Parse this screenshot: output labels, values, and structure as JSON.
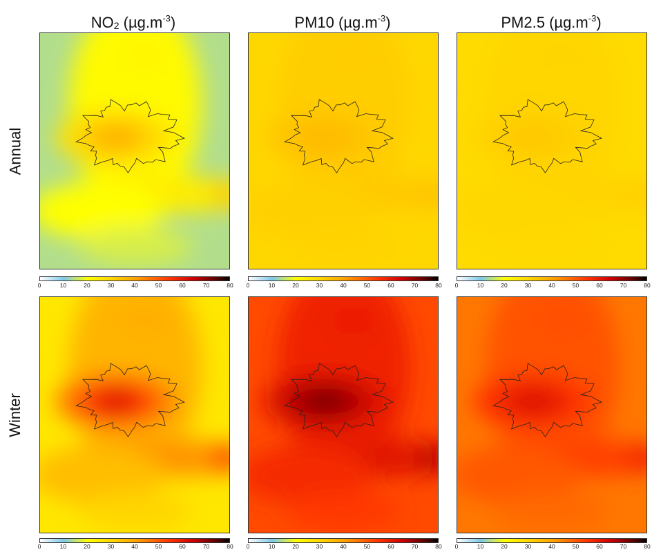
{
  "columns": [
    {
      "pollutant": "NO",
      "sub": "2",
      "unit_pre": " (µg.m",
      "unit_sup": "-3",
      "unit_post": ")"
    },
    {
      "pollutant": "PM10",
      "sub": "",
      "unit_pre": " (µg.m",
      "unit_sup": "-3",
      "unit_post": ")"
    },
    {
      "pollutant": "PM2.5",
      "sub": "",
      "unit_pre": " (µg.m",
      "unit_sup": "-3",
      "unit_post": ")"
    }
  ],
  "rows": [
    {
      "label": "Annual"
    },
    {
      "label": "Winter"
    }
  ],
  "colorbar": {
    "ticks": [
      "0",
      "10",
      "20",
      "30",
      "40",
      "50",
      "60",
      "70",
      "80"
    ],
    "range": [
      0,
      80
    ],
    "stops": [
      {
        "v": 0,
        "color": "#ffffff"
      },
      {
        "v": 10,
        "color": "#7ec8ea"
      },
      {
        "v": 20,
        "color": "#ffff00"
      },
      {
        "v": 30,
        "color": "#ffd700"
      },
      {
        "v": 40,
        "color": "#ffa500"
      },
      {
        "v": 55,
        "color": "#ff3300"
      },
      {
        "v": 65,
        "color": "#cc0000"
      },
      {
        "v": 75,
        "color": "#550000"
      },
      {
        "v": 80,
        "color": "#000000"
      }
    ]
  },
  "maps": {
    "annual_no2": {
      "background": 14,
      "city_peak": 38
    },
    "annual_pm10": {
      "background": 30,
      "city_peak": 36
    },
    "annual_pm25": {
      "background": 29,
      "city_peak": 33
    },
    "winter_no2": {
      "background": 26,
      "city_peak": 62
    },
    "winter_pm10": {
      "background": 52,
      "city_peak": 72
    },
    "winter_pm25": {
      "background": 46,
      "city_peak": 62
    }
  }
}
